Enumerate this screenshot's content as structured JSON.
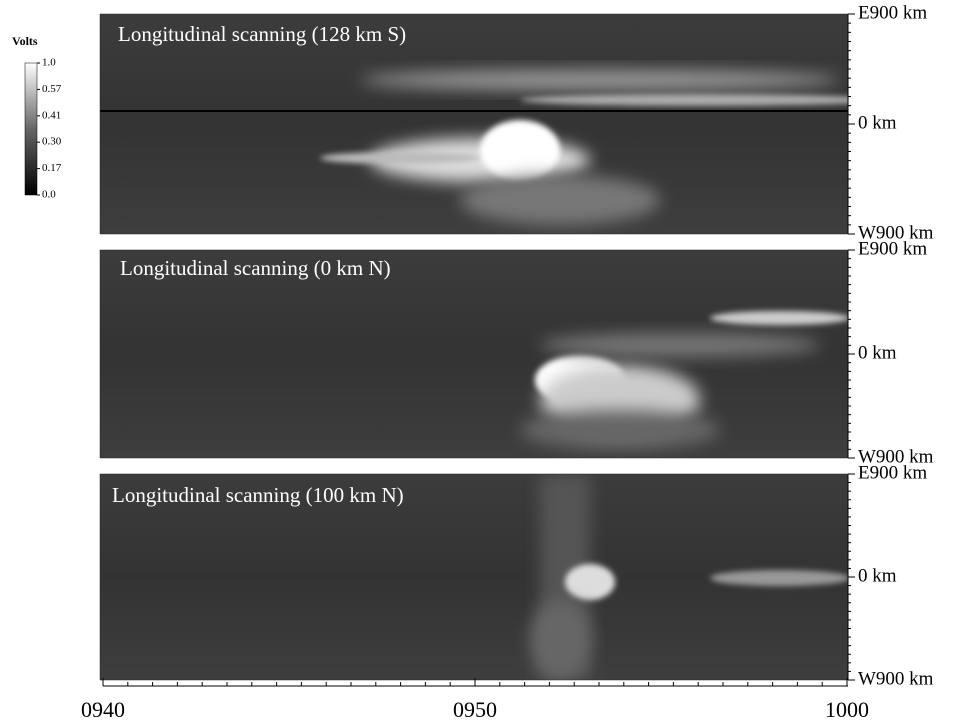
{
  "chart_data": {
    "type": "heatmap",
    "colorbar": {
      "title": "Volts",
      "clim": [
        0,
        1
      ],
      "ticks": [
        {
          "value": 1,
          "label": "1.0"
        },
        0.57,
        0.41,
        {
          "value": 0.3,
          "label": "0.30"
        },
        0.17,
        {
          "value": 0,
          "label": "0.0"
        }
      ]
    },
    "xlim": [
      "0940",
      "1000"
    ],
    "xticks": [
      "0940",
      "0950",
      "1000"
    ],
    "panels": [
      {
        "title": "Longitudinal scanning (128 km S)",
        "ylim": [
          -900,
          900
        ],
        "yticks": [
          {
            "value": 900,
            "label": "E900 km"
          },
          {
            "value": 0,
            "label": "0 km"
          },
          {
            "value": -900,
            "label": "W900 km"
          }
        ]
      },
      {
        "title": "Longitudinal scanning (0 km N)",
        "ylim": [
          -900,
          900
        ],
        "yticks": [
          {
            "value": 900,
            "label": "E900 km"
          },
          {
            "value": 0,
            "label": "0 km"
          },
          {
            "value": -900,
            "label": "W900 km"
          }
        ]
      },
      {
        "title": "Longitudinal scanning (100 km N)",
        "ylim": [
          -900,
          900
        ],
        "yticks": [
          {
            "value": 900,
            "label": "E900 km"
          },
          {
            "value": 0,
            "label": "0 km"
          },
          {
            "value": -900,
            "label": "W900 km"
          }
        ]
      }
    ]
  }
}
